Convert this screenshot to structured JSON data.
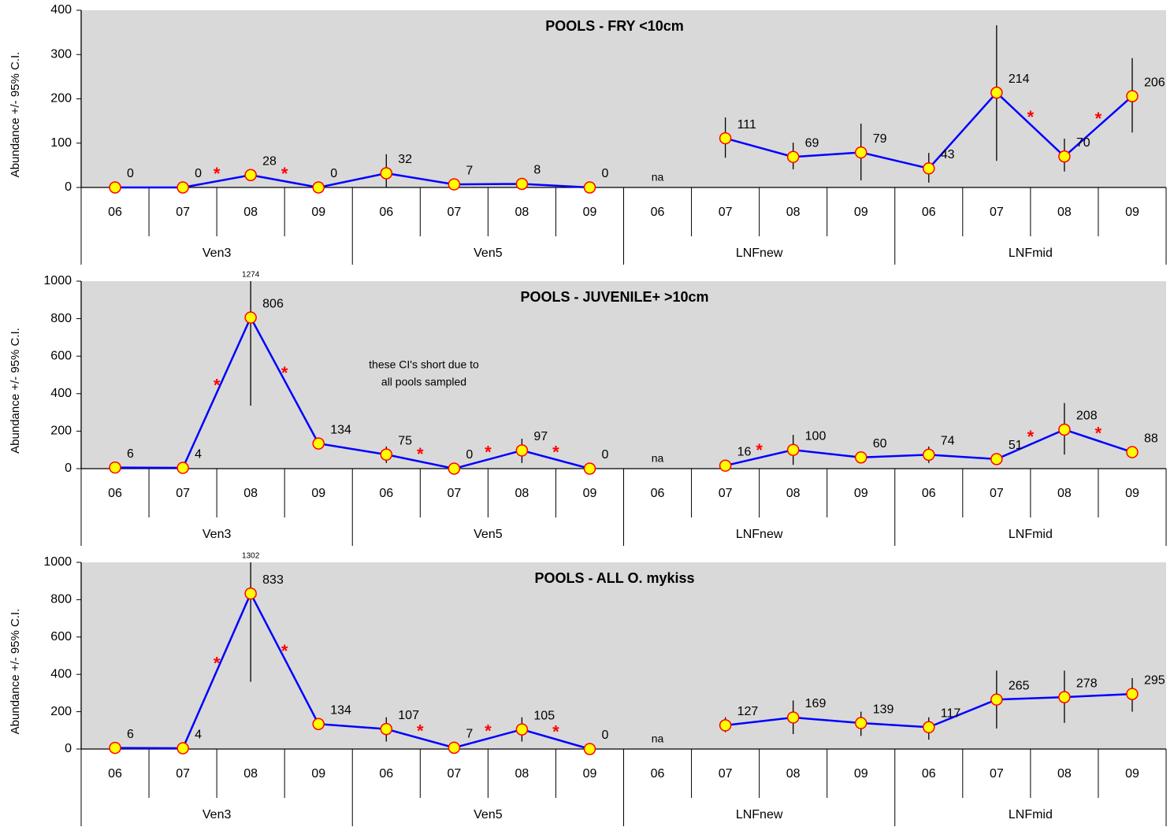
{
  "chart_data": [
    {
      "type": "line",
      "title": "POOLS - FRY <10cm",
      "y_label": "Abundance +/- 95% C.I.",
      "categories": [
        "06",
        "07",
        "08",
        "09",
        "06",
        "07",
        "08",
        "09",
        "06",
        "07",
        "08",
        "09",
        "06",
        "07",
        "08",
        "09"
      ],
      "groups": [
        "Ven3",
        "Ven5",
        "LNFnew",
        "LNFmid"
      ],
      "values": [
        0,
        0,
        28,
        0,
        32,
        7,
        8,
        0,
        null,
        111,
        69,
        79,
        43,
        214,
        70,
        206
      ],
      "value_labels": [
        null,
        null,
        null,
        null,
        null,
        null,
        null,
        null,
        "na",
        null,
        null,
        null,
        null,
        null,
        null,
        null
      ],
      "ci_low": [
        null,
        null,
        20,
        null,
        0,
        4,
        4,
        null,
        null,
        67,
        41,
        16,
        11,
        60,
        36,
        124
      ],
      "ci_high": [
        null,
        null,
        36,
        null,
        75,
        10,
        12,
        null,
        null,
        158,
        101,
        144,
        78,
        366,
        110,
        292
      ],
      "sig_change": [
        false,
        false,
        true,
        true,
        false,
        false,
        false,
        false,
        false,
        false,
        false,
        false,
        false,
        false,
        true,
        true
      ],
      "sig_marker": "*",
      "ylim": [
        0,
        400
      ],
      "yticks": [
        0,
        100,
        200,
        300,
        400
      ],
      "color": "#0000ff",
      "marker_color": "#ffff00",
      "marker_edge": "#ff0000",
      "sig_color": "#ff0000",
      "background": "#d9d9d9"
    },
    {
      "type": "line",
      "title": "POOLS - JUVENILE+ >10cm",
      "y_label": "Abundance +/- 95% C.I.",
      "categories": [
        "06",
        "07",
        "08",
        "09",
        "06",
        "07",
        "08",
        "09",
        "06",
        "07",
        "08",
        "09",
        "06",
        "07",
        "08",
        "09"
      ],
      "groups": [
        "Ven3",
        "Ven5",
        "LNFnew",
        "LNFmid"
      ],
      "values": [
        6,
        4,
        806,
        134,
        75,
        0,
        97,
        0,
        null,
        16,
        100,
        60,
        74,
        51,
        208,
        88
      ],
      "value_labels": [
        null,
        null,
        null,
        null,
        null,
        null,
        null,
        null,
        "na",
        null,
        null,
        null,
        null,
        null,
        null,
        null
      ],
      "ci_low": [
        null,
        null,
        336,
        115,
        30,
        null,
        30,
        null,
        null,
        5,
        20,
        50,
        30,
        20,
        75,
        60
      ],
      "ci_high": [
        null,
        null,
        1274,
        150,
        118,
        null,
        160,
        null,
        null,
        30,
        180,
        70,
        118,
        80,
        350,
        110
      ],
      "sig_change": [
        false,
        false,
        true,
        true,
        false,
        true,
        true,
        true,
        false,
        false,
        true,
        false,
        false,
        false,
        true,
        true
      ],
      "sig_marker": "*",
      "annotation": [
        "these CI's short due to",
        "all pools sampled"
      ],
      "ylim": [
        0,
        1000
      ],
      "yticks": [
        0,
        200,
        400,
        600,
        800,
        1000
      ],
      "color": "#0000ff",
      "marker_color": "#ffff00",
      "marker_edge": "#ff0000",
      "sig_color": "#ff0000",
      "background": "#d9d9d9"
    },
    {
      "type": "line",
      "title": "POOLS - ALL O. mykiss",
      "y_label": "Abundance +/- 95% C.I.",
      "categories": [
        "06",
        "07",
        "08",
        "09",
        "06",
        "07",
        "08",
        "09",
        "06",
        "07",
        "08",
        "09",
        "06",
        "07",
        "08",
        "09"
      ],
      "groups": [
        "Ven3",
        "Ven5",
        "LNFnew",
        "LNFmid"
      ],
      "values": [
        6,
        4,
        833,
        134,
        107,
        7,
        105,
        0,
        null,
        127,
        169,
        139,
        117,
        265,
        278,
        295
      ],
      "value_labels": [
        null,
        null,
        null,
        null,
        null,
        null,
        null,
        null,
        "na",
        null,
        null,
        null,
        null,
        null,
        null,
        null
      ],
      "ci_low": [
        null,
        null,
        360,
        120,
        40,
        0,
        40,
        null,
        null,
        90,
        80,
        70,
        50,
        110,
        140,
        200
      ],
      "ci_high": [
        null,
        null,
        1302,
        150,
        170,
        15,
        170,
        null,
        null,
        170,
        260,
        200,
        170,
        420,
        420,
        380
      ],
      "sig_change": [
        false,
        false,
        true,
        true,
        false,
        true,
        true,
        true,
        false,
        false,
        false,
        false,
        false,
        false,
        false,
        false
      ],
      "sig_marker": "*",
      "ylim": [
        0,
        1000
      ],
      "yticks": [
        0,
        200,
        400,
        600,
        800,
        1000
      ],
      "color": "#0000ff",
      "marker_color": "#ffff00",
      "marker_edge": "#ff0000",
      "sig_color": "#ff0000",
      "background": "#d9d9d9"
    }
  ]
}
